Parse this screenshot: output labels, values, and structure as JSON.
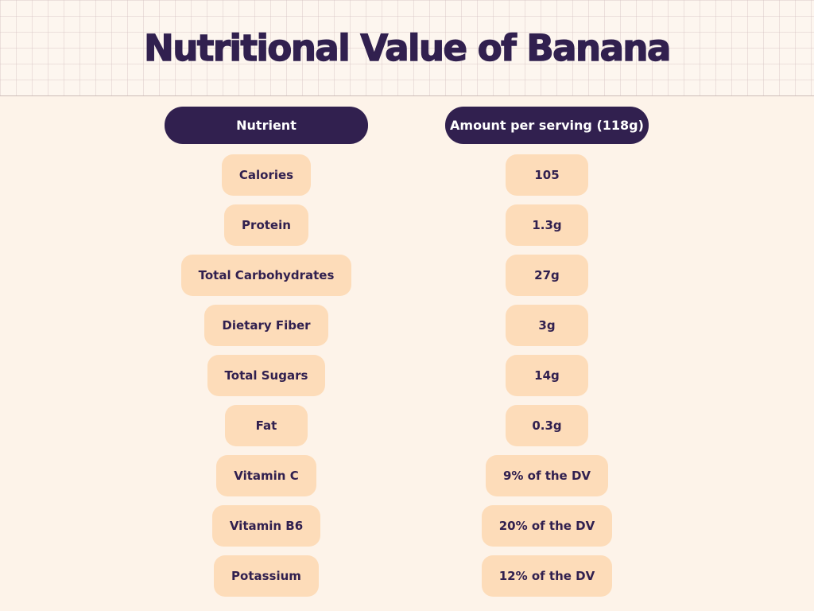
{
  "title": "Nutritional Value of Banana",
  "columns": {
    "nutrient_header": "Nutrient",
    "amount_header": "Amount per serving (118g)"
  },
  "rows": [
    {
      "nutrient": "Calories",
      "amount": "105"
    },
    {
      "nutrient": "Protein",
      "amount": "1.3g"
    },
    {
      "nutrient": "Total Carbohydrates",
      "amount": "27g"
    },
    {
      "nutrient": "Dietary Fiber",
      "amount": "3g"
    },
    {
      "nutrient": "Total Sugars",
      "amount": "14g"
    },
    {
      "nutrient": "Fat",
      "amount": "0.3g"
    },
    {
      "nutrient": "Vitamin C",
      "amount": "9% of the DV"
    },
    {
      "nutrient": "Vitamin B6",
      "amount": "20% of the DV"
    },
    {
      "nutrient": "Potassium",
      "amount": "12% of the DV"
    }
  ],
  "colors": {
    "header_bg": "#31204f",
    "cell_bg": "#fddcb9",
    "page_bg": "#fdf3e9",
    "text": "#31204f"
  }
}
